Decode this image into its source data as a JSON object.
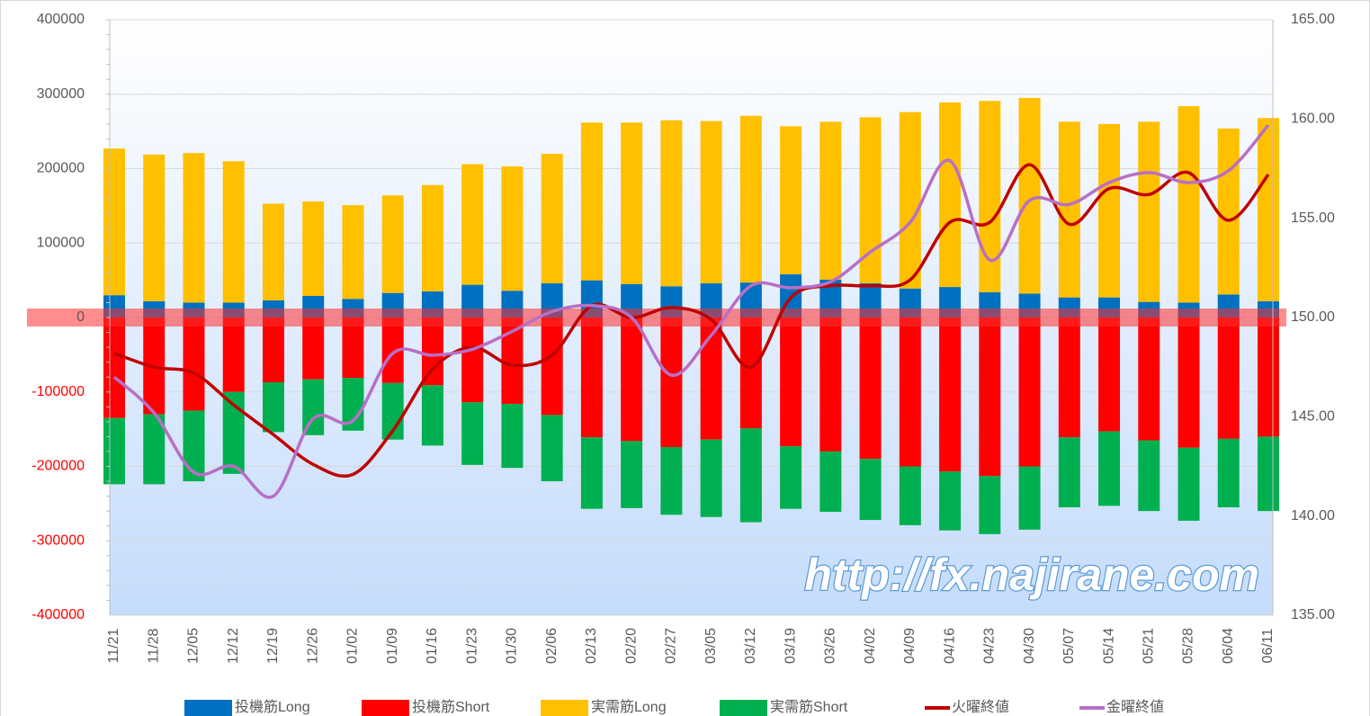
{
  "chart_data": {
    "type": "bar-line",
    "watermark": "http://fx.najirane.com",
    "categories": [
      "11/21",
      "11/28",
      "12/05",
      "12/12",
      "12/19",
      "12/26",
      "01/02",
      "01/09",
      "01/16",
      "01/23",
      "01/30",
      "02/06",
      "02/13",
      "02/20",
      "02/27",
      "03/05",
      "03/12",
      "03/19",
      "03/26",
      "04/02",
      "04/09",
      "04/16",
      "04/23",
      "04/30",
      "05/07",
      "05/14",
      "05/21",
      "05/28",
      "06/04",
      "06/11"
    ],
    "series": [
      {
        "name": "投機筋Long",
        "color": "#0070c0",
        "kind": "bar",
        "values": [
          30000,
          22000,
          20000,
          20000,
          23000,
          29000,
          25000,
          33000,
          35000,
          44000,
          36000,
          46000,
          50000,
          45000,
          42000,
          46000,
          47000,
          58000,
          51000,
          46000,
          39000,
          41000,
          34000,
          32000,
          27000,
          27000,
          21000,
          20000,
          31000,
          22000
        ]
      },
      {
        "name": "投機筋Short",
        "color": "#ff0000",
        "kind": "bar",
        "values": [
          -135000,
          -130000,
          -125000,
          -100000,
          -87000,
          -83000,
          -81000,
          -88000,
          -91000,
          -114000,
          -116000,
          -131000,
          -161000,
          -166000,
          -174000,
          -164000,
          -149000,
          -173000,
          -180000,
          -190000,
          -200000,
          -207000,
          -213000,
          -200000,
          -161000,
          -153000,
          -165000,
          -175000,
          -163000,
          -160000
        ]
      },
      {
        "name": "実需筋Long",
        "color": "#ffc000",
        "kind": "bar",
        "values": [
          197000,
          197000,
          201000,
          190000,
          130000,
          127000,
          126000,
          131000,
          143000,
          162000,
          167000,
          174000,
          212000,
          217000,
          223000,
          218000,
          224000,
          199000,
          212000,
          223000,
          237000,
          248000,
          257000,
          263000,
          236000,
          233000,
          242000,
          264000,
          223000,
          246000
        ]
      },
      {
        "name": "実需筋Short",
        "color": "#00b050",
        "kind": "bar",
        "values": [
          -89000,
          -94000,
          -95000,
          -110000,
          -67000,
          -75000,
          -71000,
          -76000,
          -81000,
          -84000,
          -86000,
          -89000,
          -96000,
          -90000,
          -91000,
          -104000,
          -126000,
          -84000,
          -81000,
          -82000,
          -79000,
          -79000,
          -78000,
          -85000,
          -94000,
          -100000,
          -95000,
          -98000,
          -92000,
          -100000
        ]
      },
      {
        "name": "火曜終値",
        "color": "#c00000",
        "kind": "line",
        "axis": "y2",
        "values": [
          148.2,
          147.5,
          147.2,
          145.6,
          144.1,
          142.6,
          142.1,
          144.3,
          147.4,
          148.5,
          147.6,
          148.1,
          150.6,
          150.0,
          150.5,
          149.9,
          147.5,
          151.0,
          151.6,
          151.6,
          151.9,
          154.8,
          154.8,
          157.7,
          154.7,
          156.5,
          156.2,
          157.3,
          154.9,
          157.2
        ]
      },
      {
        "name": "金曜終値",
        "color": "#b86fc6",
        "kind": "line",
        "axis": "y2",
        "values": [
          147.0,
          145.2,
          142.2,
          142.5,
          141.0,
          144.9,
          144.8,
          148.2,
          148.1,
          148.4,
          149.3,
          150.3,
          150.6,
          150.0,
          147.1,
          149.1,
          151.6,
          151.5,
          151.8,
          153.3,
          154.8,
          157.9,
          152.9,
          155.9,
          155.7,
          156.8,
          157.3,
          156.8,
          157.4,
          159.7
        ]
      }
    ],
    "ylim": [
      -400000,
      400000
    ],
    "yticks": [
      -400000,
      -300000,
      -200000,
      -100000,
      0,
      100000,
      200000,
      300000,
      400000
    ],
    "y2lim": [
      135,
      165
    ],
    "y2ticks": [
      {
        "value": 135,
        "label": "135.00"
      },
      {
        "value": 140,
        "label": "140.00"
      },
      {
        "value": 145,
        "label": "145.00"
      },
      {
        "value": 150,
        "label": "150.00"
      },
      {
        "value": 155,
        "label": "155.00"
      },
      {
        "value": 160,
        "label": "160.00"
      },
      {
        "value": 165,
        "label": "165.00"
      }
    ],
    "grid": true
  }
}
